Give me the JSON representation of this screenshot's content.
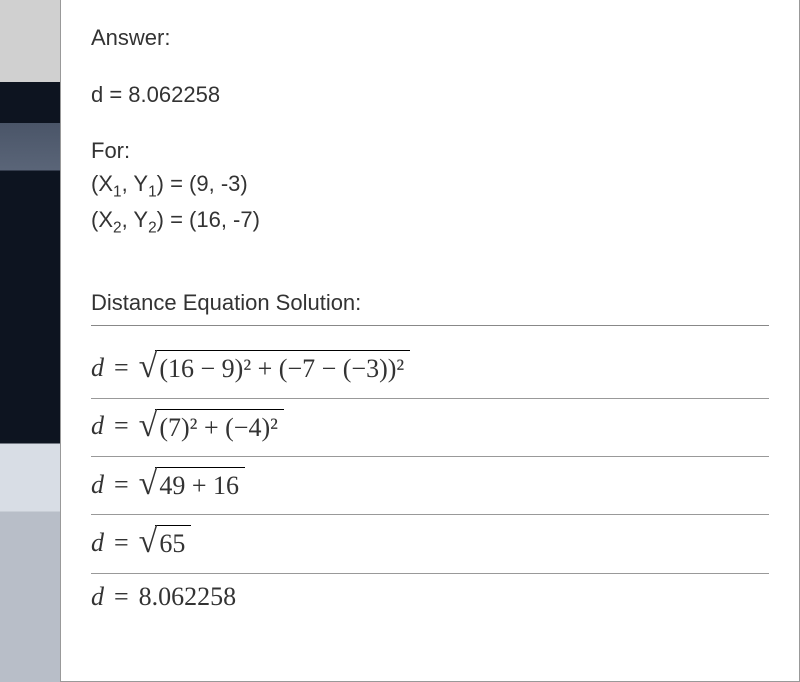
{
  "answer_label": "Answer:",
  "answer_value": "d = 8.062258",
  "for_label": "For:",
  "point1_label": "(X",
  "point1_sub1": "1",
  "point1_mid": ", Y",
  "point1_sub2": "1",
  "point1_tail": ") = (9, -3)",
  "point2_label": "(X",
  "point2_sub1": "2",
  "point2_mid": ", Y",
  "point2_sub2": "2",
  "point2_tail": ") = (16, -7)",
  "solution_label": "Distance Equation Solution:",
  "eq1_radicand": "(16 − 9)² + (−7 − (−3))²",
  "eq2_radicand": "(7)² + (−4)²",
  "eq3_radicand": "49 + 16",
  "eq4_radicand": "65",
  "eq5_value": "8.062258",
  "var_d": "d",
  "equals": "=",
  "colors": {
    "background": "#ffffff",
    "text": "#333333",
    "border": "#999999",
    "divider": "#999999"
  }
}
